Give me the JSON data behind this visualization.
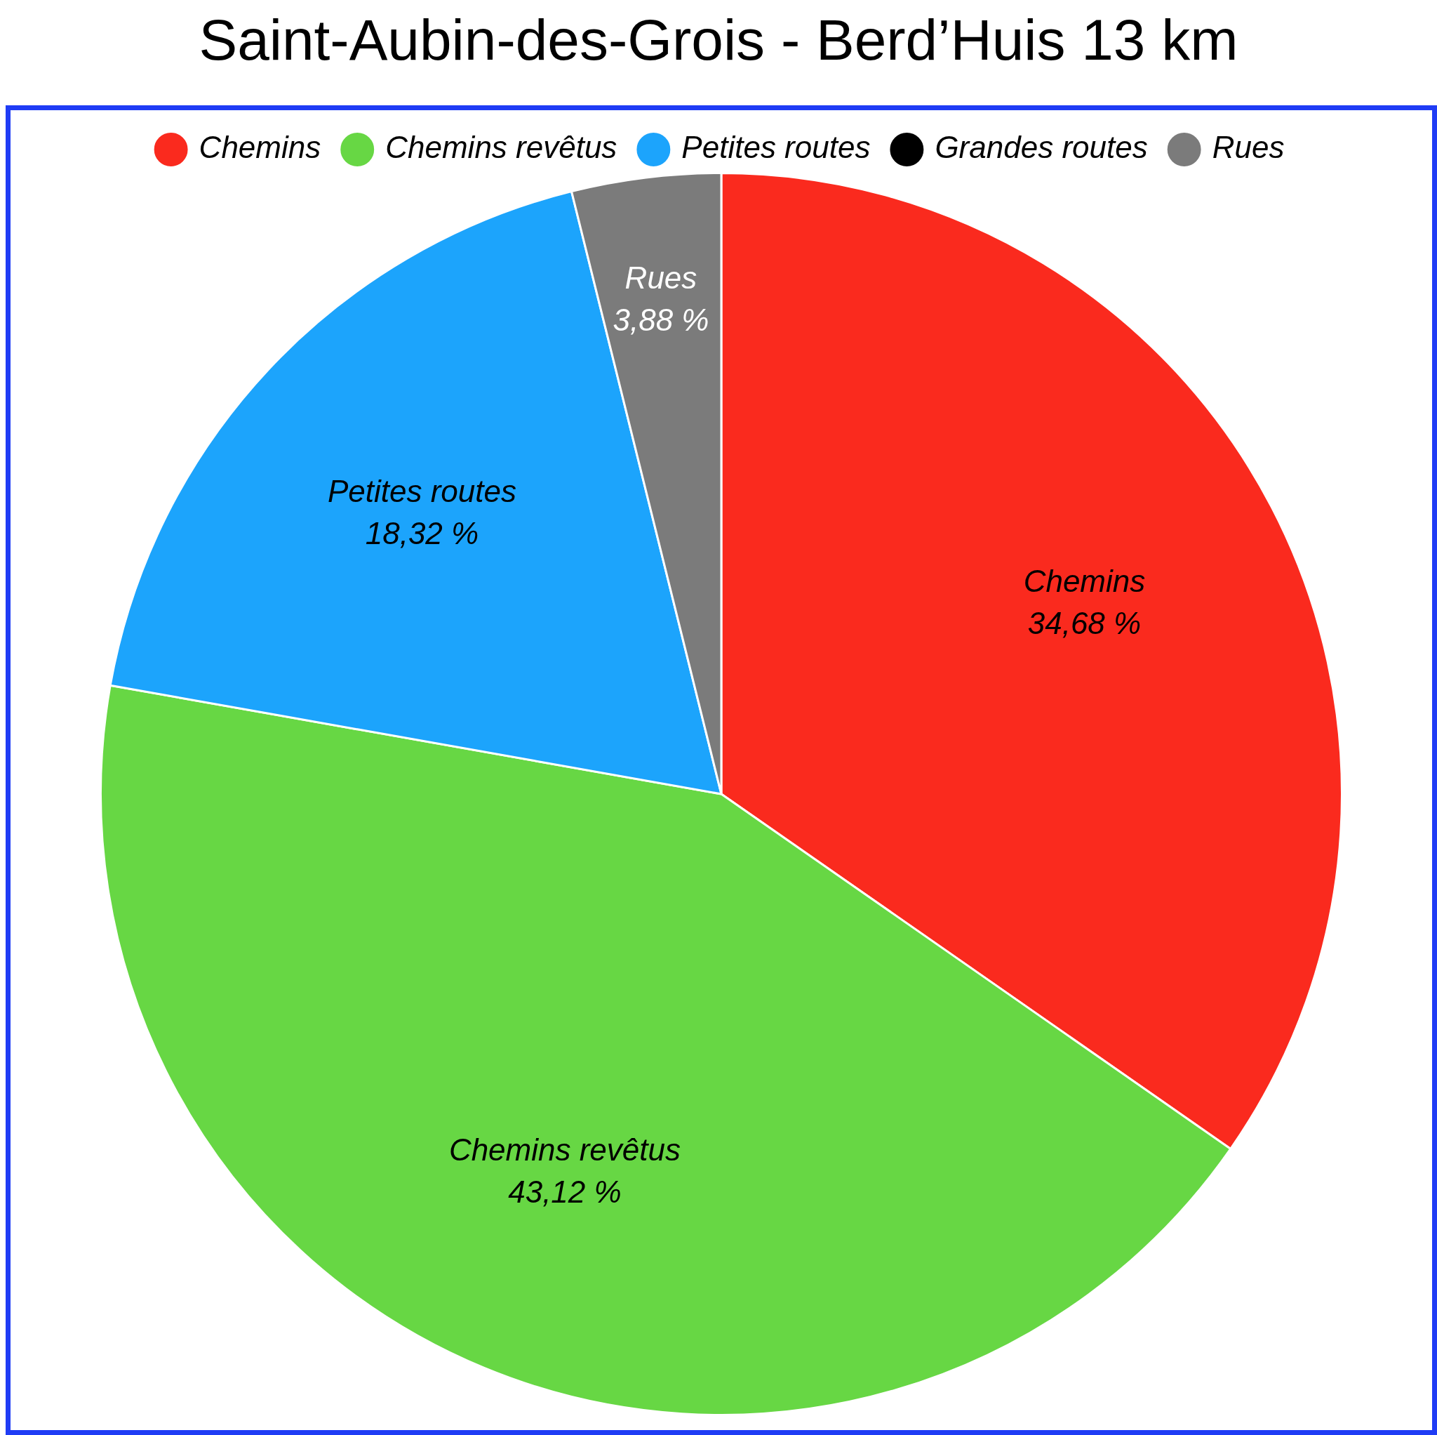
{
  "chart_data": {
    "type": "pie",
    "title": "Saint-Aubin-des-Grois - Berd’Huis 13 km",
    "categories": [
      "Chemins",
      "Chemins revêtus",
      "Petites routes",
      "Grandes routes",
      "Rues"
    ],
    "values": [
      34.68,
      43.12,
      18.32,
      0,
      3.88
    ],
    "colors": [
      "#fa2a1e",
      "#67d744",
      "#1ca4fc",
      "#000000",
      "#7b7b7b"
    ],
    "value_labels": [
      "34,68 %",
      "43,12 %",
      "18,32 %",
      null,
      "3,88 %"
    ],
    "legend": "top"
  }
}
